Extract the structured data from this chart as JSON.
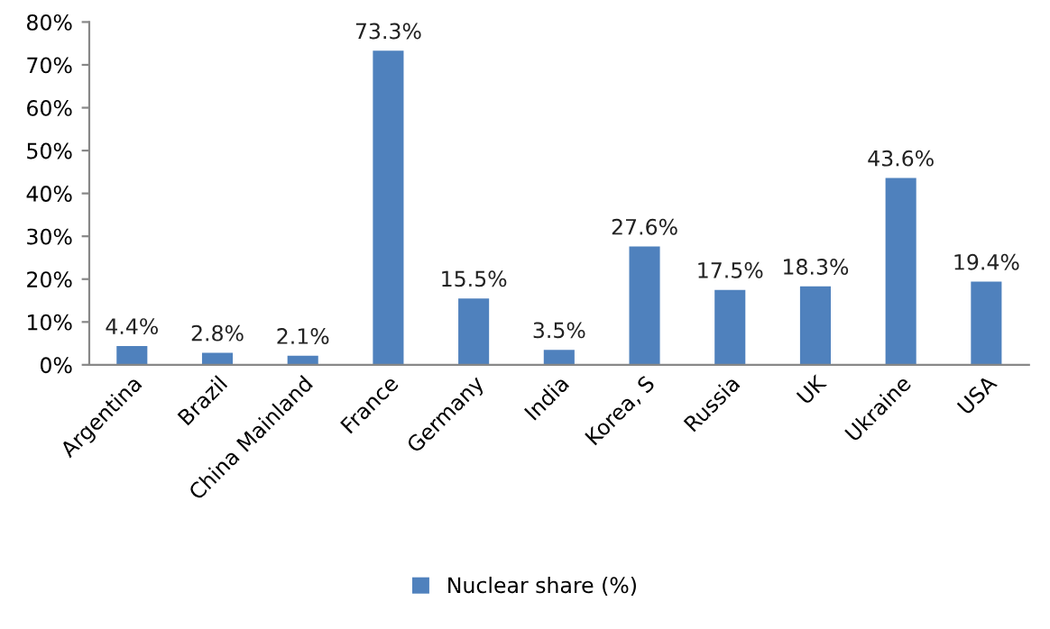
{
  "chart_data": {
    "type": "bar",
    "categories": [
      "Argentina",
      "Brazil",
      "China Mainland",
      "France",
      "Germany",
      "India",
      "Korea, S",
      "Russia",
      "UK",
      "Ukraine",
      "USA"
    ],
    "series": [
      {
        "name": "Nuclear share (%)",
        "color": "#4f81bd",
        "values": [
          4.4,
          2.8,
          2.1,
          73.3,
          15.5,
          3.5,
          27.6,
          17.5,
          18.3,
          43.6,
          19.4
        ],
        "value_labels": [
          "4.4%",
          "2.8%",
          "2.1%",
          "73.3%",
          "15.5%",
          "3.5%",
          "27.6%",
          "17.5%",
          "18.3%",
          "43.6%",
          "19.4%"
        ]
      }
    ],
    "ylim": [
      0,
      80
    ],
    "yticks": [
      {
        "value": 0,
        "label": "0%"
      },
      {
        "value": 10,
        "label": "10%"
      },
      {
        "value": 20,
        "label": "20%"
      },
      {
        "value": 30,
        "label": "30%"
      },
      {
        "value": 40,
        "label": "40%"
      },
      {
        "value": 50,
        "label": "50%"
      },
      {
        "value": 60,
        "label": "60%"
      },
      {
        "value": 70,
        "label": "70%"
      },
      {
        "value": 80,
        "label": "80%"
      }
    ],
    "grid": false,
    "legend": "bottom"
  }
}
